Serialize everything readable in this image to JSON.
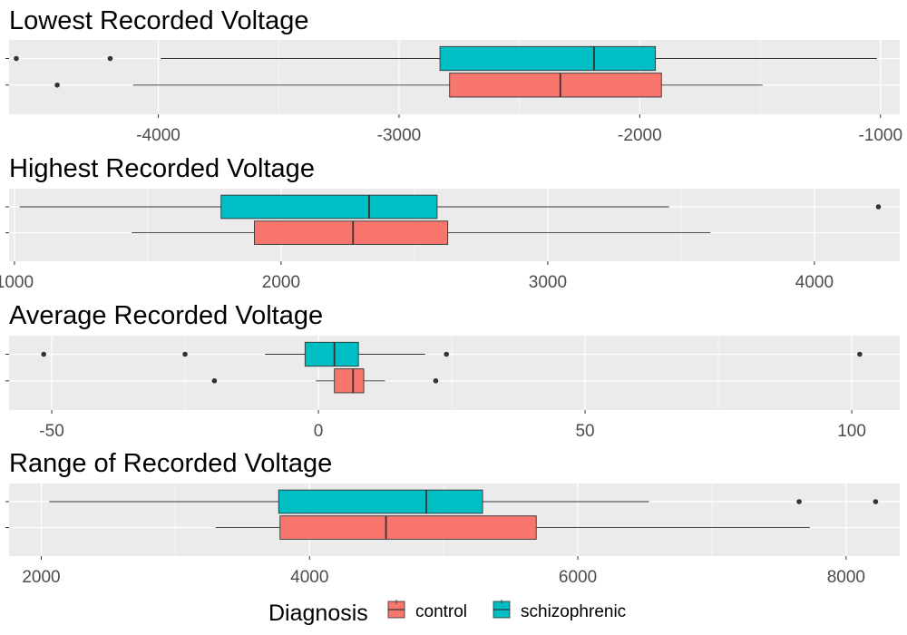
{
  "chart_data": [
    {
      "type": "boxplot",
      "title": "Lowest Recorded Voltage",
      "xlim": [
        -4620,
        -920
      ],
      "xticks": [
        -4000,
        -3000,
        -2000,
        -1000
      ],
      "xtick_labels": [
        "-4000",
        "-3000",
        "-2000",
        "-1000"
      ],
      "groups": [
        {
          "name": "schizophrenic",
          "whisker_low": -3990,
          "q1": -2830,
          "median": -2190,
          "q3": -1935,
          "whisker_high": -1015,
          "outliers": [
            -4590,
            -4200
          ]
        },
        {
          "name": "control",
          "whisker_low": -4105,
          "q1": -2790,
          "median": -2330,
          "q3": -1910,
          "whisker_high": -1490,
          "outliers": [
            -4420
          ]
        }
      ]
    },
    {
      "type": "boxplot",
      "title": "Highest Recorded Voltage",
      "xlim": [
        980,
        4320
      ],
      "xticks": [
        1000,
        2000,
        3000,
        4000
      ],
      "xtick_labels": [
        "1000",
        "2000",
        "3000",
        "4000"
      ],
      "groups": [
        {
          "name": "schizophrenic",
          "whisker_low": 1020,
          "q1": 1775,
          "median": 2330,
          "q3": 2585,
          "whisker_high": 3455,
          "outliers": [
            4240
          ]
        },
        {
          "name": "control",
          "whisker_low": 1440,
          "q1": 1900,
          "median": 2270,
          "q3": 2625,
          "whisker_high": 3610,
          "outliers": []
        }
      ]
    },
    {
      "type": "boxplot",
      "title": "Average Recorded Voltage",
      "xlim": [
        -58,
        109
      ],
      "xticks": [
        -50,
        0,
        50,
        100
      ],
      "xtick_labels": [
        "-50",
        "0",
        "50",
        "100"
      ],
      "groups": [
        {
          "name": "schizophrenic",
          "whisker_low": -10,
          "q1": -2.5,
          "median": 3,
          "q3": 7.5,
          "whisker_high": 20,
          "outliers": [
            -51.5,
            -25,
            24,
            101.5
          ]
        },
        {
          "name": "control",
          "whisker_low": -0.5,
          "q1": 3,
          "median": 6.5,
          "q3": 8.5,
          "whisker_high": 12.5,
          "outliers": [
            -19.5,
            22
          ]
        }
      ]
    },
    {
      "type": "boxplot",
      "title": "Range of Recorded Voltage",
      "xlim": [
        1760,
        8400
      ],
      "xticks": [
        2000,
        4000,
        6000,
        8000
      ],
      "xtick_labels": [
        "2000",
        "4000",
        "6000",
        "8000"
      ],
      "groups": [
        {
          "name": "schizophrenic",
          "whisker_low": 2060,
          "q1": 3770,
          "median": 4870,
          "q3": 5290,
          "whisker_high": 6530,
          "outliers": [
            7650,
            8220
          ]
        },
        {
          "name": "control",
          "whisker_low": 3300,
          "q1": 3780,
          "median": 4570,
          "q3": 5690,
          "whisker_high": 7730,
          "outliers": []
        }
      ]
    }
  ],
  "legend": {
    "title": "Diagnosis",
    "placement": "bottom",
    "items": [
      {
        "label": "control",
        "color": "#F8766D"
      },
      {
        "label": "schizophrenic",
        "color": "#00BFC4"
      }
    ]
  },
  "colors": {
    "panel_background": "#EBEBEB",
    "grid": "#FFFFFF",
    "outline": "#333333",
    "tick_text": "#4D4D4D"
  }
}
